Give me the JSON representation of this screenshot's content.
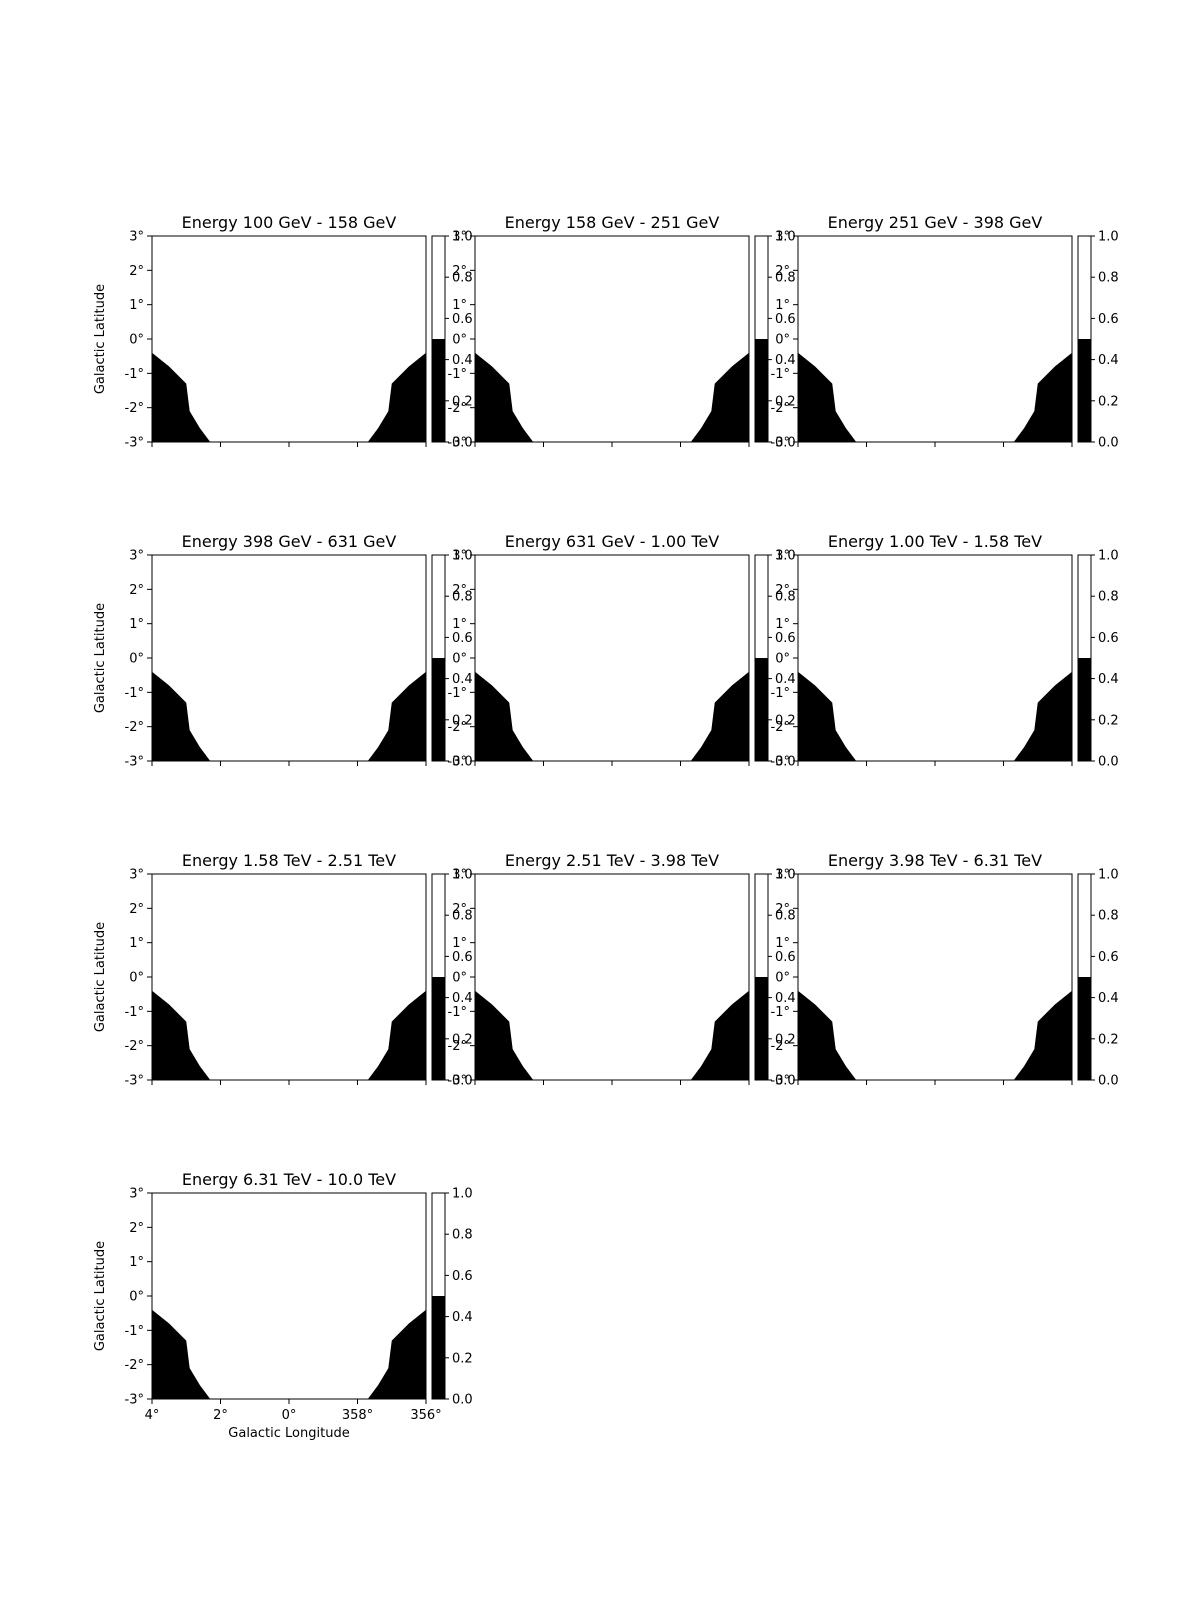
{
  "chart_data": {
    "type": "heatmap",
    "layout": {
      "rows": 4,
      "cols": 3
    },
    "xlabel": "Galactic Longitude",
    "ylabel": "Galactic Latitude",
    "x_ticks": [
      "4°",
      "2°",
      "0°",
      "358°",
      "356°"
    ],
    "y_ticks": [
      "3°",
      "2°",
      "1°",
      "0°",
      "-1°",
      "-2°",
      "-3°"
    ],
    "colorbar_ticks": [
      "0.0",
      "0.2",
      "0.4",
      "0.6",
      "0.8",
      "1.0"
    ],
    "colorbar_range": [
      0,
      1
    ],
    "colormap": [
      "#000000",
      "#ffffff"
    ],
    "mask_edge": {
      "left_lon": [
        4.0,
        3.5,
        3.0,
        2.9,
        2.6,
        2.3,
        2.0
      ],
      "right_lon": [
        356.0,
        356.5,
        357.0,
        357.1,
        357.4,
        357.7,
        358.0
      ],
      "lat": [
        -0.4,
        -0.8,
        -1.3,
        -2.1,
        -2.6,
        -3.0,
        -3.0
      ],
      "inside_value": 1.0,
      "outside_value": 0.0
    },
    "panels": [
      {
        "title": "Energy 100 GeV - 158 GeV"
      },
      {
        "title": "Energy 158 GeV - 251 GeV"
      },
      {
        "title": "Energy 251 GeV - 398 GeV"
      },
      {
        "title": "Energy 398 GeV - 631 GeV"
      },
      {
        "title": "Energy 631 GeV - 1.00 TeV"
      },
      {
        "title": "Energy 1.00 TeV - 1.58 TeV"
      },
      {
        "title": "Energy 1.58 TeV - 2.51 TeV"
      },
      {
        "title": "Energy 2.51 TeV - 3.98 TeV"
      },
      {
        "title": "Energy 3.98 TeV - 6.31 TeV"
      },
      {
        "title": "Energy 6.31 TeV - 10.0 TeV"
      }
    ]
  }
}
